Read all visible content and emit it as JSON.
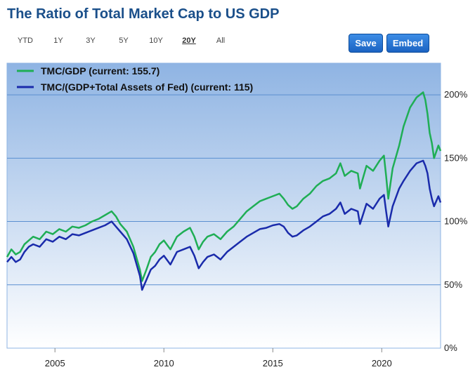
{
  "header": {
    "title": "The Ratio of Total Market Cap to US GDP"
  },
  "toolbar": {
    "ranges": [
      "YTD",
      "1Y",
      "3Y",
      "5Y",
      "10Y",
      "20Y",
      "All"
    ],
    "active_range": "20Y",
    "save_label": "Save",
    "embed_label": "Embed"
  },
  "chart_data": {
    "type": "line",
    "title": "The Ratio of Total Market Cap to US GDP",
    "xlabel": "",
    "ylabel": "",
    "xlim": [
      2002.8,
      2022.7
    ],
    "ylim": [
      0,
      225
    ],
    "x_ticks": [
      2005,
      2010,
      2015,
      2020
    ],
    "x_tick_labels": [
      "2005",
      "2010",
      "2015",
      "2020"
    ],
    "y_ticks": [
      0,
      50,
      100,
      150,
      200
    ],
    "y_tick_labels": [
      "0%",
      "50%",
      "100%",
      "150%",
      "200%"
    ],
    "grid": true,
    "legend_position": "top-left",
    "series": [
      {
        "name": "TMC/GDP (current: 155.7)",
        "color": "#1fae55",
        "x": [
          2002.8,
          2003.0,
          2003.2,
          2003.4,
          2003.6,
          2003.8,
          2004.0,
          2004.3,
          2004.6,
          2004.9,
          2005.2,
          2005.5,
          2005.8,
          2006.1,
          2006.4,
          2006.7,
          2007.0,
          2007.3,
          2007.6,
          2007.8,
          2008.0,
          2008.3,
          2008.6,
          2008.8,
          2008.9,
          2009.0,
          2009.2,
          2009.4,
          2009.6,
          2009.8,
          2010.0,
          2010.3,
          2010.6,
          2010.9,
          2011.2,
          2011.4,
          2011.6,
          2011.8,
          2012.0,
          2012.3,
          2012.6,
          2012.9,
          2013.2,
          2013.5,
          2013.8,
          2014.1,
          2014.4,
          2014.7,
          2015.0,
          2015.3,
          2015.5,
          2015.7,
          2015.9,
          2016.1,
          2016.4,
          2016.7,
          2017.0,
          2017.3,
          2017.6,
          2017.9,
          2018.1,
          2018.3,
          2018.6,
          2018.9,
          2019.0,
          2019.3,
          2019.6,
          2019.9,
          2020.1,
          2020.2,
          2020.3,
          2020.5,
          2020.8,
          2021.0,
          2021.3,
          2021.6,
          2021.9,
          2022.0,
          2022.1,
          2022.2,
          2022.3,
          2022.4,
          2022.5,
          2022.6,
          2022.7
        ],
        "y": [
          72,
          78,
          74,
          76,
          82,
          85,
          88,
          86,
          92,
          90,
          94,
          92,
          96,
          95,
          97,
          100,
          102,
          105,
          108,
          104,
          98,
          92,
          80,
          68,
          62,
          53,
          62,
          72,
          76,
          82,
          85,
          78,
          88,
          92,
          95,
          88,
          78,
          84,
          88,
          90,
          86,
          92,
          96,
          102,
          108,
          112,
          116,
          118,
          120,
          122,
          118,
          113,
          110,
          112,
          118,
          122,
          128,
          132,
          134,
          138,
          146,
          136,
          140,
          138,
          126,
          144,
          140,
          148,
          152,
          136,
          118,
          142,
          160,
          175,
          190,
          198,
          202,
          196,
          185,
          170,
          162,
          150,
          155,
          160,
          155.7
        ]
      },
      {
        "name": "TMC/(GDP+Total Assets of Fed) (current: 115)",
        "color": "#1a2bab",
        "x": [
          2002.8,
          2003.0,
          2003.2,
          2003.4,
          2003.6,
          2003.8,
          2004.0,
          2004.3,
          2004.6,
          2004.9,
          2005.2,
          2005.5,
          2005.8,
          2006.1,
          2006.4,
          2006.7,
          2007.0,
          2007.3,
          2007.6,
          2007.8,
          2008.0,
          2008.3,
          2008.6,
          2008.8,
          2008.9,
          2009.0,
          2009.2,
          2009.4,
          2009.6,
          2009.8,
          2010.0,
          2010.3,
          2010.6,
          2010.9,
          2011.2,
          2011.4,
          2011.6,
          2011.8,
          2012.0,
          2012.3,
          2012.6,
          2012.9,
          2013.2,
          2013.5,
          2013.8,
          2014.1,
          2014.4,
          2014.7,
          2015.0,
          2015.3,
          2015.5,
          2015.7,
          2015.9,
          2016.1,
          2016.4,
          2016.7,
          2017.0,
          2017.3,
          2017.6,
          2017.9,
          2018.1,
          2018.3,
          2018.6,
          2018.9,
          2019.0,
          2019.3,
          2019.6,
          2019.9,
          2020.1,
          2020.2,
          2020.3,
          2020.5,
          2020.8,
          2021.0,
          2021.3,
          2021.6,
          2021.9,
          2022.0,
          2022.1,
          2022.2,
          2022.3,
          2022.4,
          2022.5,
          2022.6,
          2022.7
        ],
        "y": [
          68,
          72,
          68,
          70,
          76,
          80,
          82,
          80,
          86,
          84,
          88,
          86,
          90,
          89,
          91,
          93,
          95,
          97,
          100,
          96,
          92,
          86,
          75,
          63,
          57,
          46,
          54,
          62,
          65,
          70,
          73,
          66,
          76,
          78,
          80,
          73,
          63,
          68,
          72,
          74,
          70,
          76,
          80,
          84,
          88,
          91,
          94,
          95,
          97,
          98,
          96,
          91,
          88,
          89,
          93,
          96,
          100,
          104,
          106,
          110,
          115,
          106,
          110,
          108,
          98,
          114,
          110,
          118,
          121,
          108,
          96,
          112,
          126,
          132,
          140,
          146,
          148,
          144,
          138,
          126,
          118,
          112,
          116,
          120,
          115
        ]
      }
    ]
  }
}
